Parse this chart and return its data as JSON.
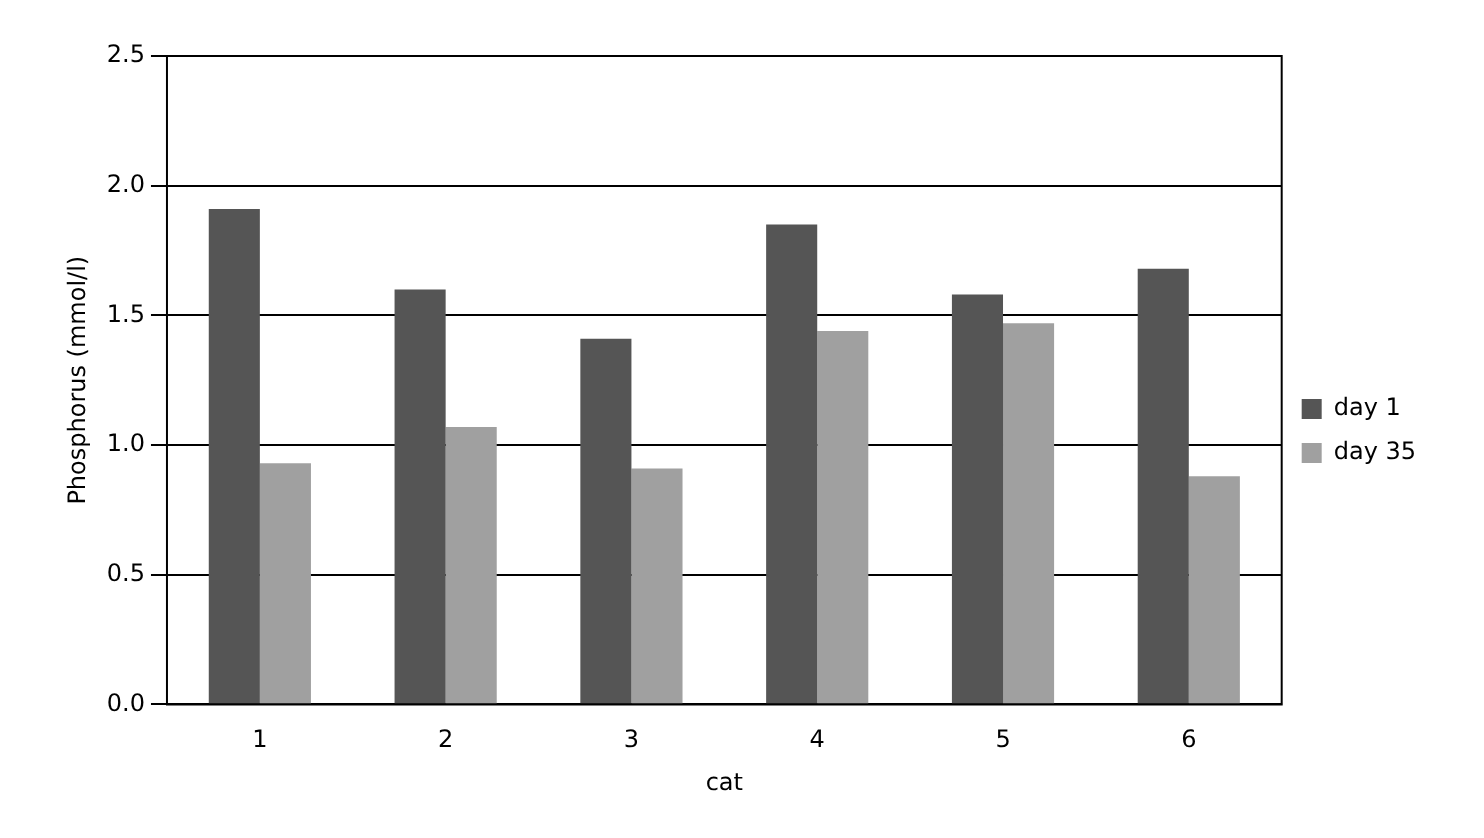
{
  "chart_data": {
    "type": "bar",
    "xlabel": "cat",
    "ylabel": "Phosphorus (mmol/l)",
    "categories": [
      "1",
      "2",
      "3",
      "4",
      "5",
      "6"
    ],
    "series": [
      {
        "name": "day 1",
        "color": "#555555",
        "values": [
          1.91,
          1.6,
          1.41,
          1.85,
          1.58,
          1.68
        ]
      },
      {
        "name": "day 35",
        "color": "#a0a0a0",
        "values": [
          0.93,
          1.07,
          0.91,
          1.44,
          1.47,
          0.88
        ]
      }
    ],
    "ylim": [
      0,
      2.5
    ],
    "yticks": [
      {
        "value": 0,
        "label": "0.0"
      },
      {
        "value": 0.5,
        "label": "0.5"
      },
      {
        "value": 1,
        "label": "1.0"
      },
      {
        "value": 1.5,
        "label": "1.5"
      },
      {
        "value": 2,
        "label": "2.0"
      },
      {
        "value": 2.5,
        "label": "2.5"
      }
    ],
    "grid": "y",
    "legend": "right"
  }
}
